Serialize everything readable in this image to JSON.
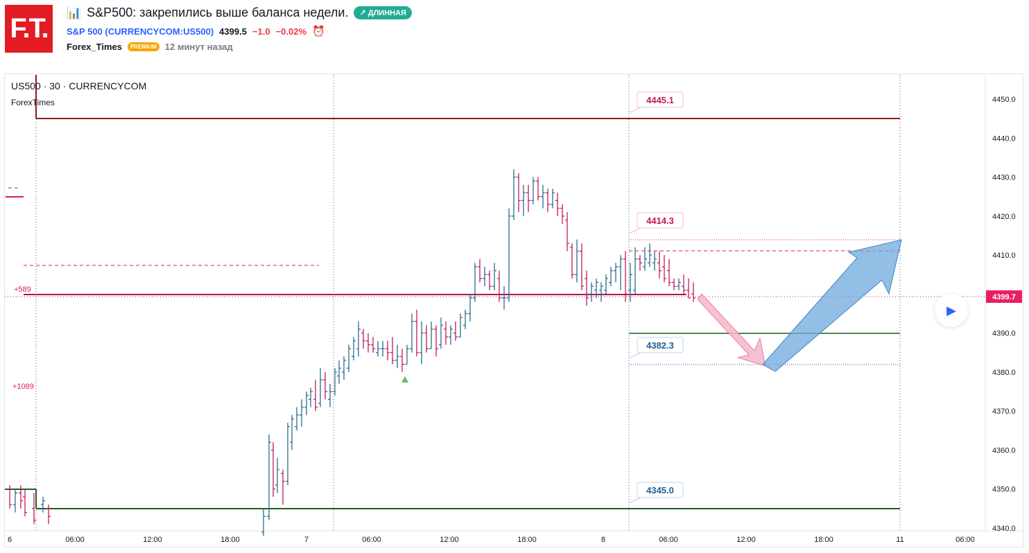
{
  "header": {
    "logo_text": "F.T.",
    "title_icon": "📊",
    "title": "S&P500: закрепились выше баланса недели.",
    "badge": "↗ ДЛИННАЯ",
    "symbol_link": "S&P 500 (CURRENCYCOM:US500)",
    "price": "4399.5",
    "change": "−1.0",
    "change_pct": "−0.02%",
    "author": "Forex_Times",
    "premium": "PREMIUM",
    "time_ago": "12 минут назад"
  },
  "chart": {
    "legend": "US500 · 30 · CURRENCYCOM",
    "indicator": "ForexTimes",
    "y_ticks": [
      "4450.0",
      "4440.0",
      "4430.0",
      "4420.0",
      "4410.0",
      "4390.0",
      "4380.0",
      "4370.0",
      "4360.0",
      "4350.0",
      "4340.0"
    ],
    "y_tick_values": [
      4450,
      4440,
      4430,
      4420,
      4410,
      4390,
      4380,
      4370,
      4360,
      4350,
      4340
    ],
    "x_ticks": [
      "6",
      "06:00",
      "12:00",
      "18:00",
      "7",
      "06:00",
      "12:00",
      "18:00",
      "8",
      "06:00",
      "12:00",
      "18:00",
      "11",
      "06:00"
    ],
    "current_price_label": "4399.7",
    "level_labels": {
      "l1": "4445.1",
      "l2": "4414.3",
      "l3": "4382.3",
      "l4": "4345.0"
    },
    "left_labels": {
      "a": "+589",
      "b": "+1089"
    },
    "colors": {
      "up": "#2a6c8c",
      "down": "#c2185b",
      "resistance": "#8b1a1a",
      "support": "#1b5e20",
      "accent_pink": "#d81b60",
      "arrow_blue": "#6fa8dc",
      "arrow_pink": "#f4b6c8"
    }
  }
}
